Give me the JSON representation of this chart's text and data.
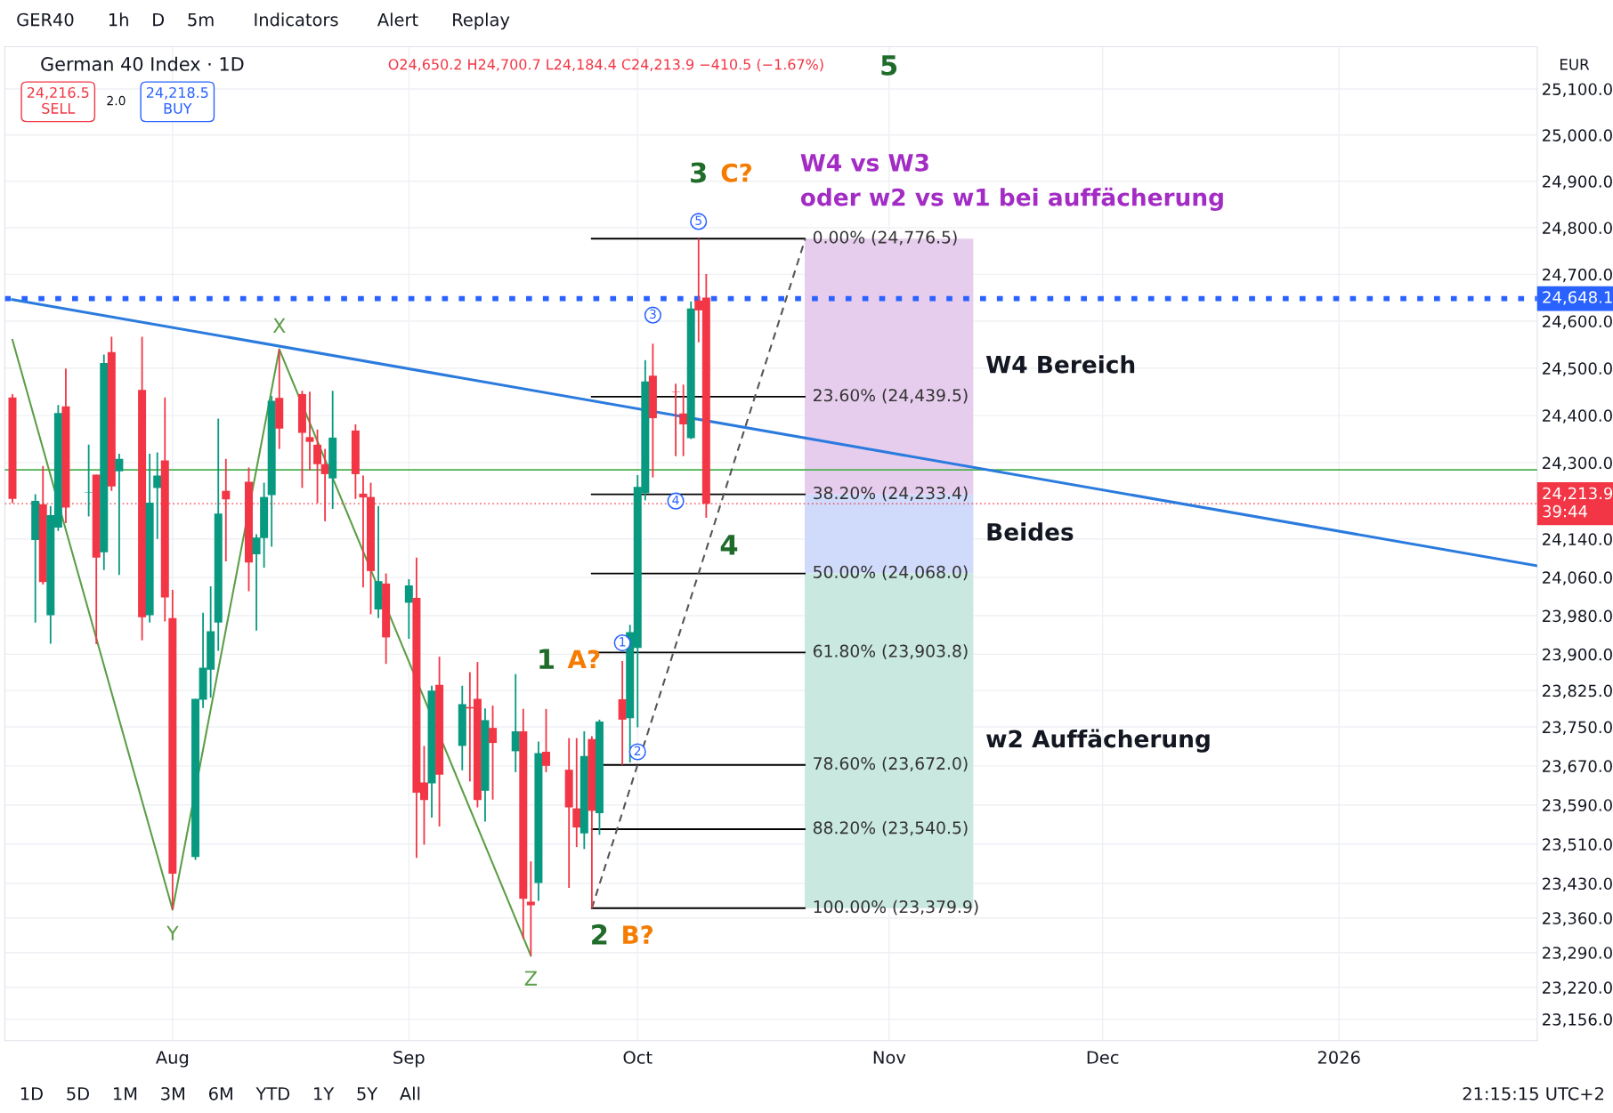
{
  "chart_data": {
    "type": "candlestick",
    "title": "German 40 Index · 1D",
    "subtitle": "O24,650.2 H24,700.7 L24,184.4 C24,213.9 −410.5 (−1.67%)",
    "log": true,
    "grid": true,
    "xlim": [
      "2025-07-10",
      "2026-01-27"
    ],
    "xticks": [
      {
        "value": "2025-08-01",
        "label": "Aug"
      },
      {
        "value": "2025-09-01",
        "label": "Sep"
      },
      {
        "value": "2025-10-01",
        "label": "Oct"
      },
      {
        "value": "2025-11-03",
        "label": "Nov"
      },
      {
        "value": "2025-12-01",
        "label": "Dec"
      },
      {
        "value": "2026-01-01",
        "label": "2026"
      }
    ],
    "ylim": [
      23113,
      25192
    ],
    "yticks": [
      {
        "value": 25100,
        "label": "25,100.0"
      },
      {
        "value": 25000,
        "label": "25,000.0"
      },
      {
        "value": 24900,
        "label": "24,900.0"
      },
      {
        "value": 24800,
        "label": "24,800.0"
      },
      {
        "value": 24700,
        "label": "24,700.0"
      },
      {
        "value": 24600,
        "label": "24,600.0"
      },
      {
        "value": 24500,
        "label": "24,500.0"
      },
      {
        "value": 24400,
        "label": "24,400.0"
      },
      {
        "value": 24300,
        "label": "24,300.0"
      },
      {
        "value": 24140,
        "label": "24,140.0"
      },
      {
        "value": 24060,
        "label": "24,060.0"
      },
      {
        "value": 23980,
        "label": "23,980.0"
      },
      {
        "value": 23900,
        "label": "23,900.0"
      },
      {
        "value": 23825,
        "label": "23,825.0"
      },
      {
        "value": 23750,
        "label": "23,750.0"
      },
      {
        "value": 23670,
        "label": "23,670.0"
      },
      {
        "value": 23590,
        "label": "23,590.0"
      },
      {
        "value": 23510,
        "label": "23,510.0"
      },
      {
        "value": 23430,
        "label": "23,430.0"
      },
      {
        "value": 23360,
        "label": "23,360.0"
      },
      {
        "value": 23290,
        "label": "23,290.0"
      },
      {
        "value": 23220,
        "label": "23,220.0"
      },
      {
        "value": 23156,
        "label": "23,156.0"
      }
    ],
    "series": [
      {
        "x": [
          "2025-07-11",
          "2025-07-14",
          "2025-07-15",
          "2025-07-16",
          "2025-07-17",
          "2025-07-18",
          "2025-07-21",
          "2025-07-22",
          "2025-07-23",
          "2025-07-24",
          "2025-07-25",
          "2025-07-28",
          "2025-07-29",
          "2025-07-30",
          "2025-07-31",
          "2025-08-01",
          "2025-08-04",
          "2025-08-05",
          "2025-08-06",
          "2025-08-07",
          "2025-08-08",
          "2025-08-11",
          "2025-08-12",
          "2025-08-13",
          "2025-08-14",
          "2025-08-15",
          "2025-08-18",
          "2025-08-19",
          "2025-08-20",
          "2025-08-21",
          "2025-08-22",
          "2025-08-25",
          "2025-08-26",
          "2025-08-27",
          "2025-08-28",
          "2025-08-29",
          "2025-09-01",
          "2025-09-02",
          "2025-09-03",
          "2025-09-04",
          "2025-09-05",
          "2025-09-08",
          "2025-09-09",
          "2025-09-10",
          "2025-09-11",
          "2025-09-12",
          "2025-09-15",
          "2025-09-16",
          "2025-09-17",
          "2025-09-18",
          "2025-09-19",
          "2025-09-22",
          "2025-09-23",
          "2025-09-24",
          "2025-09-25",
          "2025-09-26",
          "2025-09-29",
          "2025-09-30",
          "2025-10-01",
          "2025-10-02",
          "2025-10-03",
          "2025-10-06",
          "2025-10-07",
          "2025-10-08",
          "2025-10-09",
          "2025-10-10"
        ],
        "ohlc": [
          [
            24438,
            24445,
            24215,
            24224
          ],
          [
            24138,
            24234,
            23966,
            24220
          ],
          [
            24213,
            24293,
            24045,
            24050
          ],
          [
            23981,
            24209,
            23922,
            24190
          ],
          [
            24164,
            24422,
            24157,
            24405
          ],
          [
            24419,
            24499,
            24173,
            24206
          ],
          [
            24237,
            24338,
            24187,
            24238
          ],
          [
            24275,
            24275,
            23921,
            24101
          ],
          [
            24112,
            24529,
            24075,
            24511
          ],
          [
            24534,
            24567,
            24241,
            24250
          ],
          [
            24282,
            24319,
            24065,
            24308
          ],
          [
            24454,
            24567,
            23929,
            23977
          ],
          [
            23981,
            24319,
            23966,
            24216
          ],
          [
            24247,
            24322,
            24140,
            24273
          ],
          [
            24305,
            24438,
            23968,
            24018
          ],
          [
            23975,
            24034,
            23377,
            23450
          ],
          [
            23484,
            23808,
            23478,
            23808
          ],
          [
            23806,
            23986,
            23789,
            23872
          ],
          [
            23868,
            24041,
            23810,
            23948
          ],
          [
            23966,
            24393,
            23907,
            24193
          ],
          [
            24241,
            24308,
            24093,
            24223
          ],
          [
            24260,
            24290,
            24031,
            24091
          ],
          [
            24108,
            24150,
            23949,
            24143
          ],
          [
            24142,
            24258,
            24080,
            24228
          ],
          [
            24232,
            24441,
            24124,
            24431
          ],
          [
            24437,
            24540,
            24329,
            24372
          ],
          [
            24445,
            24452,
            24247,
            24363
          ],
          [
            24354,
            24450,
            24284,
            24344
          ],
          [
            24338,
            24370,
            24215,
            24297
          ],
          [
            24297,
            24329,
            24177,
            24276
          ],
          [
            24267,
            24452,
            24203,
            24353
          ],
          [
            24368,
            24381,
            24224,
            24276
          ],
          [
            24235,
            24273,
            24039,
            24227
          ],
          [
            24228,
            24258,
            23983,
            24073
          ],
          [
            23993,
            24209,
            23975,
            24052
          ],
          [
            24047,
            24068,
            23880,
            23935
          ],
          [
            24007,
            24056,
            23932,
            24043
          ],
          [
            24017,
            24101,
            23482,
            23615
          ],
          [
            23636,
            23711,
            23509,
            23600
          ],
          [
            23634,
            23835,
            23564,
            23825
          ],
          [
            23837,
            23895,
            23546,
            23652
          ],
          [
            23711,
            23835,
            23661,
            23797
          ],
          [
            23791,
            23863,
            23638,
            23788
          ],
          [
            23808,
            23884,
            23585,
            23600
          ],
          [
            23619,
            23788,
            23556,
            23764
          ],
          [
            23748,
            23794,
            23601,
            23717
          ],
          [
            23700,
            23859,
            23657,
            23741
          ],
          [
            23741,
            23787,
            23318,
            23399
          ],
          [
            23393,
            23475,
            23284,
            23386
          ],
          [
            23431,
            23720,
            23395,
            23696
          ],
          [
            23699,
            23787,
            23657,
            23670
          ],
          [
            23662,
            23727,
            23421,
            23585
          ],
          [
            23583,
            23727,
            23504,
            23544
          ],
          [
            23532,
            23741,
            23500,
            23690
          ],
          [
            23725,
            23731,
            23380,
            23578
          ],
          [
            23573,
            23765,
            23529,
            23761
          ],
          [
            23807,
            23886,
            23672,
            23765
          ],
          [
            23768,
            23961,
            23677,
            23946
          ],
          [
            23913,
            24274,
            23749,
            24249
          ],
          [
            24236,
            24517,
            24221,
            24472
          ],
          [
            24484,
            24552,
            24269,
            24394
          ],
          [
            24450,
            24467,
            24314,
            24449
          ],
          [
            24404,
            24465,
            24314,
            24381
          ],
          [
            24352,
            24642,
            24350,
            24627
          ],
          [
            24644,
            24776.5,
            24555,
            24623
          ],
          [
            24650.2,
            24700.7,
            24184.4,
            24213.9
          ]
        ],
        "colors": [
          "#f23645",
          "#089981",
          "#f23645",
          "#089981",
          "#089981",
          "#f23645",
          "#089981",
          "#f23645",
          "#089981",
          "#f23645",
          "#089981",
          "#f23645",
          "#089981",
          "#089981",
          "#f23645",
          "#f23645",
          "#089981",
          "#089981",
          "#089981",
          "#089981",
          "#f23645",
          "#f23645",
          "#089981",
          "#089981",
          "#089981",
          "#f23645",
          "#f23645",
          "#f23645",
          "#f23645",
          "#f23645",
          "#089981",
          "#f23645",
          "#f23645",
          "#f23645",
          "#089981",
          "#f23645",
          "#089981",
          "#f23645",
          "#f23645",
          "#089981",
          "#f23645",
          "#089981",
          "#f23645",
          "#f23645",
          "#089981",
          "#f23645",
          "#089981",
          "#f23645",
          "#f23645",
          "#089981",
          "#f23645",
          "#f23645",
          "#f23645",
          "#089981",
          "#f23645",
          "#089981",
          "#f23645",
          "#089981",
          "#089981",
          "#089981",
          "#f23645",
          "#f23645",
          "#f23645",
          "#089981",
          "#f23645",
          "#f23645"
        ]
      },
      {
        "type": "line",
        "color": "#5c9e48",
        "x": [
          "2025-07-11",
          "2025-08-01",
          "2025-08-15",
          "2025-09-17"
        ],
        "values": [
          24560,
          23377,
          24540,
          23284
        ]
      },
      {
        "type": "line",
        "color": "#2b7bde",
        "x": [
          "2025-07-11",
          "2026-01-27"
        ],
        "values": [
          24646,
          24084
        ]
      },
      {
        "type": "line",
        "color": "#555555",
        "line_style": "dashed",
        "x": [
          "2025-09-25",
          "2025-10-23"
        ],
        "values": [
          23379.9,
          24776.5
        ]
      }
    ],
    "ref_lines": [
      {
        "axis": "y",
        "value": 24776.5,
        "label": "0.00% (24,776.5)",
        "color": "#000000"
      },
      {
        "axis": "y",
        "value": 24439.5,
        "label": "23.60% (24,439.5)",
        "color": "#000000"
      },
      {
        "axis": "y",
        "value": 24233.4,
        "label": "38.20% (24,233.4)",
        "color": "#000000"
      },
      {
        "axis": "y",
        "value": 24068.0,
        "label": "50.00% (24,068.0)",
        "color": "#000000"
      },
      {
        "axis": "y",
        "value": 23903.8,
        "label": "61.80% (23,903.8)",
        "color": "#000000"
      },
      {
        "axis": "y",
        "value": 23672.0,
        "label": "78.60% (23,672.0)",
        "color": "#000000"
      },
      {
        "axis": "y",
        "value": 23540.5,
        "label": "88.20% (23,540.5)",
        "color": "#000000"
      },
      {
        "axis": "y",
        "value": 23379.9,
        "label": "100.00% (23,379.9)",
        "color": "#000000"
      },
      {
        "axis": "y",
        "value": 24285,
        "label": null,
        "color": "#4caf50"
      },
      {
        "axis": "y",
        "value": 24648.1,
        "label": "24,648.1",
        "color": "#2962ff",
        "line_style": "dotted"
      },
      {
        "axis": "y",
        "value": 24213.9,
        "label": "24,213.9\n39:44",
        "color": "#f23645",
        "line_style": "dotted"
      }
    ],
    "bands": [
      {
        "axis": "y",
        "from": 24233.4,
        "to": 24776.5,
        "label": "W4 Bereich",
        "color": "#e6cdee"
      },
      {
        "axis": "y",
        "from": 24068.0,
        "to": 24233.4,
        "label": "Beides",
        "color": "#d0dbfc"
      },
      {
        "axis": "y",
        "from": 23379.9,
        "to": 24068.0,
        "label": "w2 Auffächerung",
        "color": "#c9e9e0"
      }
    ],
    "annotations": [
      "5",
      "3",
      "C?",
      "4",
      "1",
      "A?",
      "2",
      "B?",
      "X",
      "Y",
      "Z",
      "1",
      "2",
      "3",
      "4",
      "5",
      "W4 vs W3",
      "oder w2 vs w1 bei auffächerung",
      "GER40      1h    D    5m       Indicators       Alert      Replay",
      "24,216.5\nSELL",
      "2.0",
      "24,218.5\nBUY",
      "EUR",
      "1D    5D    1M    3M    6M    YTD    1Y    5Y    All",
      "21:15:15 UTC+2"
    ]
  }
}
